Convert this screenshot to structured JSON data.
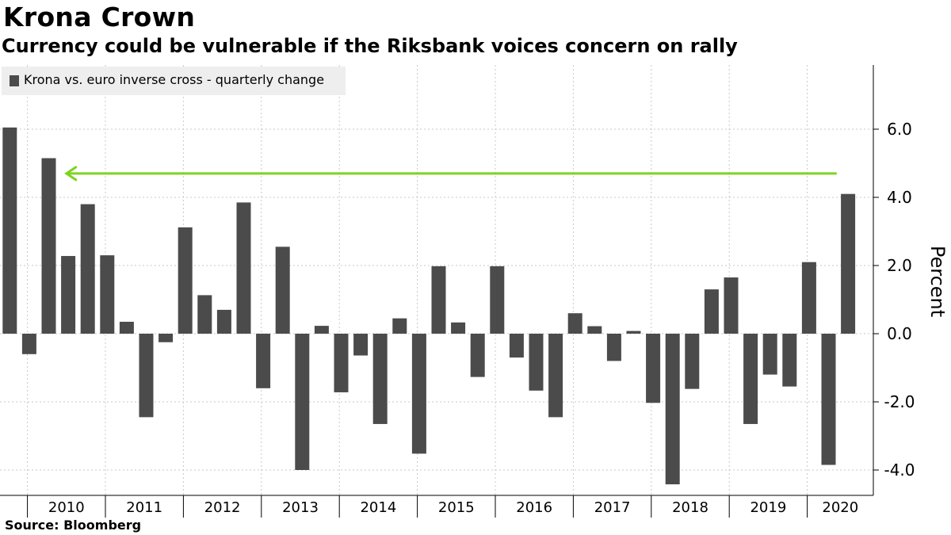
{
  "header": {
    "title": "Krona Crown",
    "subtitle": "Currency could be vulnerable if the Riksbank voices concern on rally"
  },
  "footer": {
    "source": "Source: Bloomberg"
  },
  "chart_data": {
    "type": "bar",
    "title": "Krona Crown",
    "subtitle": "Currency could be vulnerable if the Riksbank voices concern on rally",
    "ylabel": "Percent",
    "xlabel": "",
    "ylim": [
      -4.8,
      7.8
    ],
    "yticks": [
      -4.0,
      -2.0,
      0.0,
      2.0,
      4.0,
      6.0
    ],
    "ytick_labels": [
      "-4.0",
      "-2.0",
      "0.0",
      "2.0",
      "4.0",
      "6.0"
    ],
    "grid": true,
    "legend_position": "top-left",
    "x_year_labels": [
      "2010",
      "2011",
      "2012",
      "2013",
      "2014",
      "2015",
      "2016",
      "2017",
      "2018",
      "2019",
      "2020"
    ],
    "series": [
      {
        "name": "Krona vs. euro inverse cross - quarterly change",
        "color": "#4b4b4b",
        "values": [
          6.05,
          -0.6,
          5.15,
          2.28,
          3.8,
          2.3,
          0.35,
          -2.45,
          -0.25,
          3.12,
          1.13,
          0.7,
          3.85,
          -1.6,
          2.55,
          -4.0,
          0.23,
          -1.72,
          -0.64,
          -2.65,
          0.45,
          -3.52,
          1.98,
          0.33,
          -1.27,
          1.98,
          -0.7,
          -1.67,
          -2.45,
          0.6,
          0.22,
          -0.8,
          0.08,
          -2.03,
          -4.42,
          -1.62,
          1.3,
          1.65,
          -2.65,
          -1.2,
          -1.55,
          2.1,
          -3.85,
          4.1
        ]
      }
    ],
    "annotations": [
      {
        "type": "arrow",
        "color": "#7ed321",
        "y": 4.7,
        "from_quarter_index": 42.5,
        "to_quarter_index": 2.5
      }
    ]
  }
}
